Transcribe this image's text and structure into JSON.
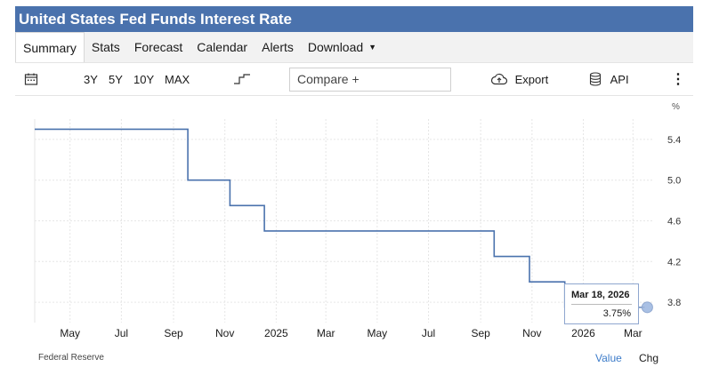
{
  "header": {
    "title": "United States Fed Funds Interest Rate"
  },
  "tabs": [
    {
      "label": "Summary",
      "active": true
    },
    {
      "label": "Stats"
    },
    {
      "label": "Forecast"
    },
    {
      "label": "Calendar"
    },
    {
      "label": "Alerts"
    },
    {
      "label": "Download"
    }
  ],
  "toolbar": {
    "ranges": [
      "3Y",
      "5Y",
      "10Y",
      "MAX"
    ],
    "compare_label": "Compare +",
    "export_label": "Export",
    "api_label": "API"
  },
  "footer": {
    "source": "Federal Reserve",
    "value_label": "Value",
    "chg_label": "Chg"
  },
  "tooltip": {
    "date": "Mar 18, 2026",
    "value": "3.75%"
  },
  "colors": {
    "title_bar": "#4a72ad",
    "line": "#4a72ad",
    "link": "#3d7cc9"
  },
  "icons": [
    "calendar-icon",
    "step-line-icon",
    "cloud-upload-icon",
    "database-icon",
    "more-vertical-icon"
  ],
  "chart_data": {
    "type": "line",
    "step": true,
    "unit_label": "%",
    "x_tick_labels": [
      "May",
      "Jul",
      "Sep",
      "Nov",
      "2025",
      "Mar",
      "May",
      "Jul",
      "Sep",
      "Nov",
      "2026",
      "Mar"
    ],
    "x_tick_dates": [
      "2024-05-01",
      "2024-07-01",
      "2024-09-01",
      "2024-11-01",
      "2025-01-01",
      "2025-03-01",
      "2025-05-01",
      "2025-07-01",
      "2025-09-01",
      "2025-11-01",
      "2026-01-01",
      "2026-03-01"
    ],
    "y_ticks": [
      3.8,
      4.2,
      4.6,
      5.0,
      5.4
    ],
    "y_tick_labels": [
      "3.8",
      "4.2",
      "4.6",
      "5.0",
      "5.4"
    ],
    "ylim": [
      3.6,
      5.6
    ],
    "xlim": [
      "2024-03-20",
      "2026-03-25"
    ],
    "grid": true,
    "series": [
      {
        "x": [
          "2024-03-20",
          "2024-09-18",
          "2024-11-07",
          "2024-12-18",
          "2025-09-17",
          "2025-10-29",
          "2025-12-10",
          "2026-03-18"
        ],
        "y": [
          5.5,
          5.0,
          4.75,
          4.5,
          4.25,
          4.0,
          3.75,
          3.75
        ]
      }
    ]
  }
}
